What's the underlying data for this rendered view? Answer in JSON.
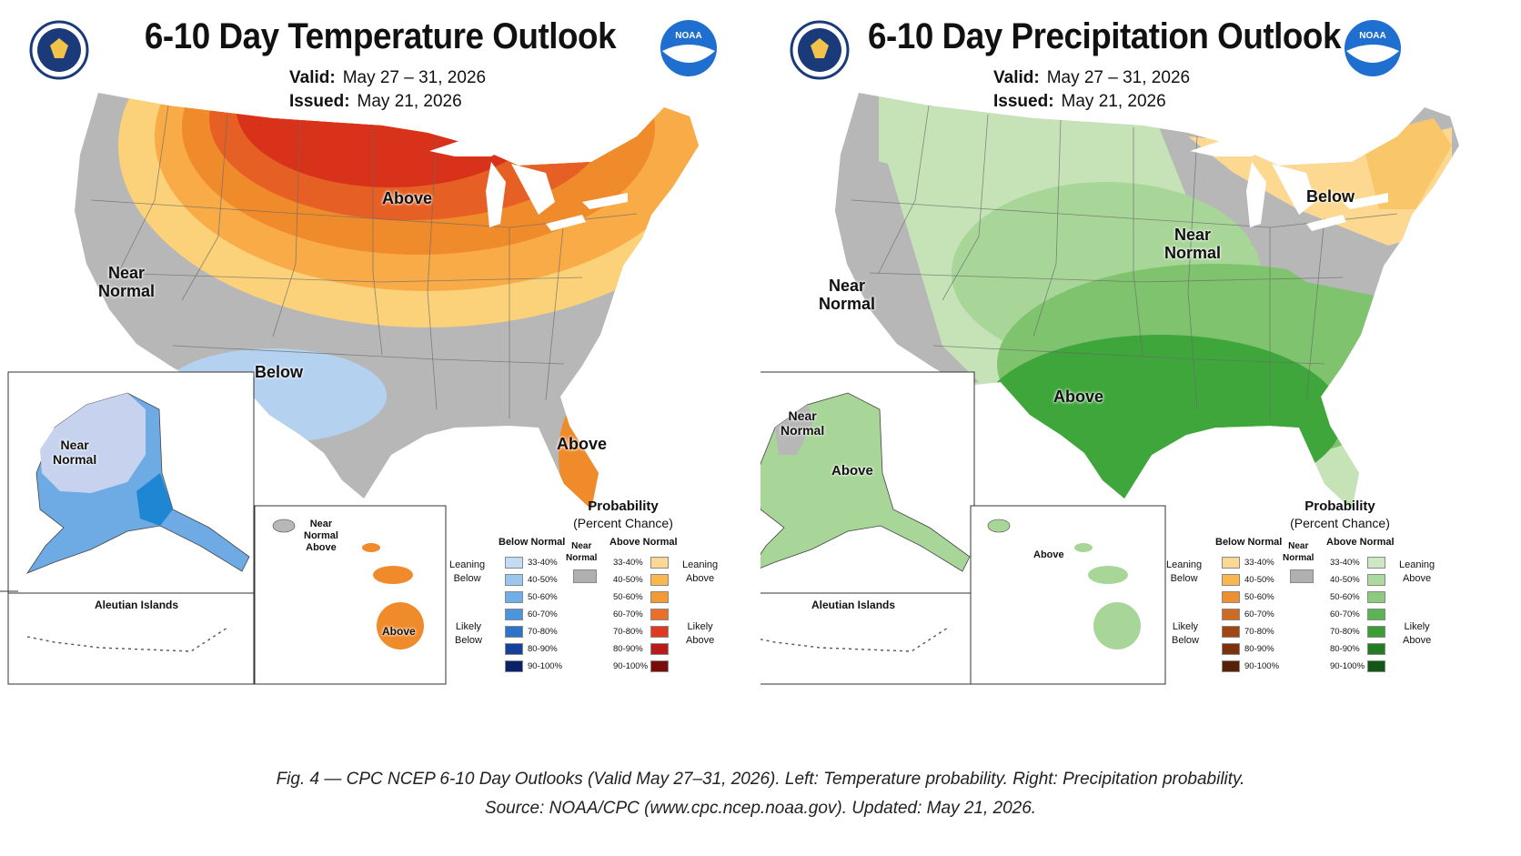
{
  "temperature": {
    "title": "6-10 Day Temperature Outlook",
    "valid_label": "Valid:",
    "valid_value": "May 27 – 31, 2026",
    "issued_label": "Issued:",
    "issued_value": "May 21, 2026",
    "regions": {
      "above_north": "Above",
      "near_normal_west": "Near\nNormal",
      "below_southwest": "Below",
      "above_florida": "Above",
      "alaska_near_normal": "Near\nNormal",
      "hawaii_near_normal": "Near\nNormal\nAbove",
      "hawaii_above": "Above"
    },
    "aleutian_label": "Aleutian Islands",
    "colors": {
      "gray": "#b7b7b7",
      "above_33": "#fbd17a",
      "above_40": "#f8ab46",
      "above_50": "#f08b2c",
      "above_60": "#e65f25",
      "above_70": "#d9321b",
      "below_33": "#b5d1f0",
      "below_40": "#98c0ea",
      "below_50": "#6eaae3"
    }
  },
  "precipitation": {
    "title": "6-10 Day Precipitation Outlook",
    "valid_label": "Valid:",
    "valid_value": "May 27 – 31, 2026",
    "issued_label": "Issued:",
    "issued_value": "May 21, 2026",
    "regions": {
      "near_normal_west": "Near\nNormal",
      "near_normal_midwest": "Near\nNormal",
      "below_northeast": "Below",
      "above_south": "Above",
      "alaska_near_normal": "Near\nNormal",
      "alaska_above": "Above",
      "hawaii_above": "Above"
    },
    "aleutian_label": "Aleutian Islands",
    "colors": {
      "gray": "#b7b7b7",
      "above_33": "#c5e3b6",
      "above_40": "#a8d598",
      "above_50": "#7fc36f",
      "above_60": "#3fa63c",
      "below_33": "#fcd891",
      "below_40": "#f9c769"
    }
  },
  "legend": {
    "title": "Probability",
    "subtitle": "(Percent Chance)",
    "below_head": "Below Normal",
    "near_head": "Near\nNormal",
    "above_head": "Above Normal",
    "ranges": [
      "33-40%",
      "40-50%",
      "50-60%",
      "60-70%",
      "70-80%",
      "80-90%",
      "90-100%"
    ],
    "leaning_below": "Leaning\nBelow",
    "likely_below": "Likely\nBelow",
    "leaning_above": "Leaning\nAbove",
    "likely_above": "Likely\nAbove",
    "temp_below_colors": [
      "#c3dcf4",
      "#9bc6ee",
      "#6faee7",
      "#4b95dc",
      "#2b74c9",
      "#16409a",
      "#0b2168"
    ],
    "temp_above_colors": [
      "#fcd894",
      "#f9b74f",
      "#f29a35",
      "#ea6f28",
      "#de3a21",
      "#b71c1c",
      "#7a0c0c"
    ],
    "precip_below_colors": [
      "#fcd894",
      "#f9b74f",
      "#ec9033",
      "#cf6a22",
      "#a04613",
      "#7c320c",
      "#552107"
    ],
    "precip_above_colors": [
      "#cde8c2",
      "#acd9a0",
      "#8ccb7e",
      "#5cb553",
      "#3c9c36",
      "#257a25",
      "#145616"
    ],
    "near_color": "#b0b0b0"
  },
  "caption": {
    "line1": "Fig. 4 — CPC NCEP 6-10 Day Outlooks (Valid May 27–31, 2026). Left: Temperature probability. Right: Precipitation probability.",
    "line2": "Source: NOAA/CPC (www.cpc.ncep.noaa.gov).  Updated: May 21, 2026."
  }
}
